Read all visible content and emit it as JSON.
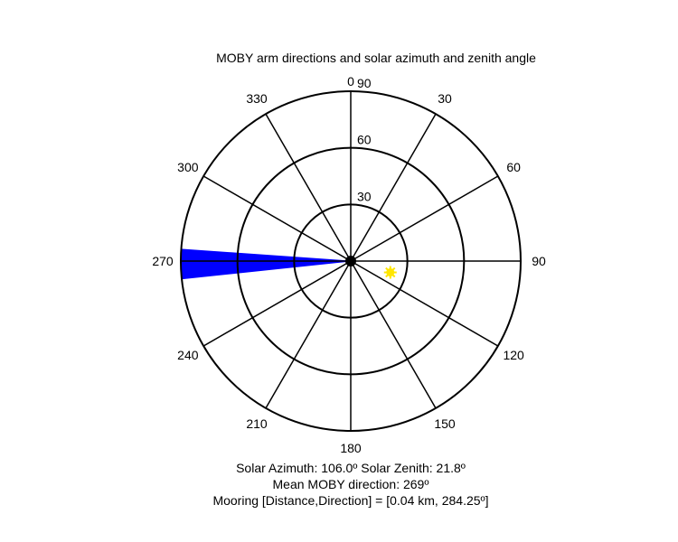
{
  "chart_data": {
    "type": "polar",
    "title": "MOBY arm directions and solar azimuth and zenith angle",
    "angle_ticks": [
      "0",
      "30",
      "60",
      "90",
      "120",
      "150",
      "180",
      "210",
      "240",
      "270",
      "300",
      "330"
    ],
    "angle_tick_values": [
      0,
      30,
      60,
      90,
      120,
      150,
      180,
      210,
      240,
      270,
      300,
      330
    ],
    "radial_ticks": [
      "30",
      "60",
      "90"
    ],
    "radial_tick_values": [
      30,
      60,
      90
    ],
    "rmax": 90,
    "sun": {
      "azimuth": 106.0,
      "zenith": 21.8,
      "color": "#ffe600"
    },
    "moby_wedge": {
      "direction_start": 264,
      "direction_end": 274,
      "color": "#0000ff"
    },
    "center_marker_color": "#000000"
  },
  "captions": {
    "solar_line": "Solar Azimuth: 106.0º   Solar Zenith: 21.8º",
    "moby_line": "Mean MOBY direction: 269º",
    "mooring_line": "Mooring [Distance,Direction] = [0.04 km, 284.25º]"
  }
}
